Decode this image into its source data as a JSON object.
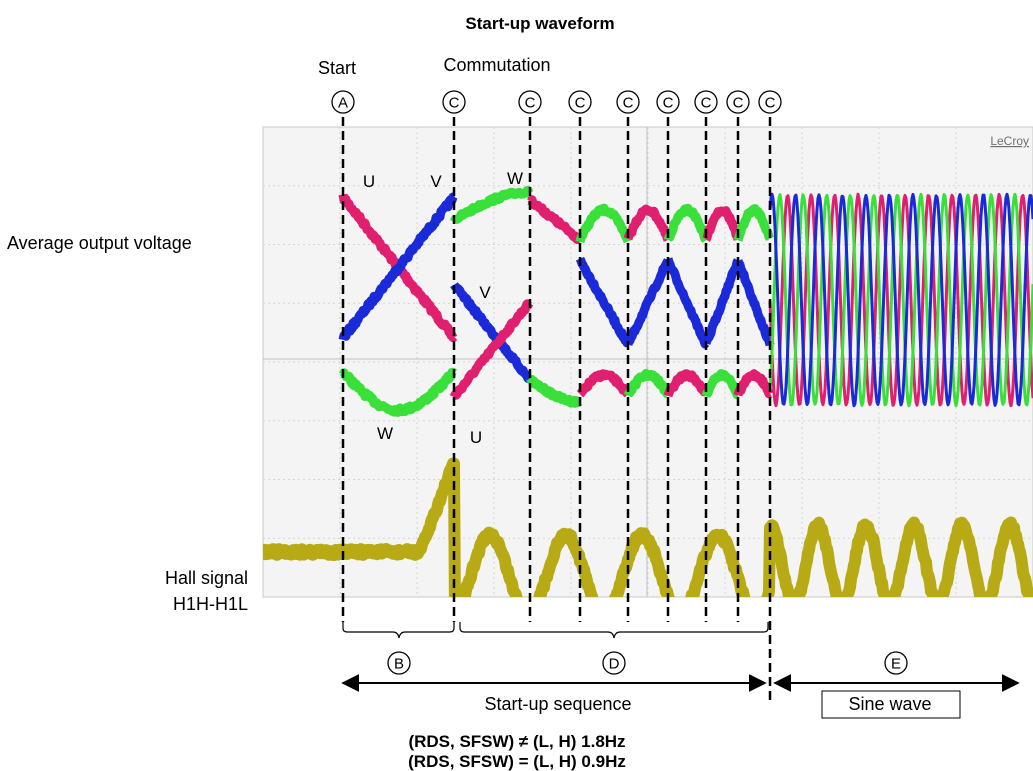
{
  "title": "Start-up waveform",
  "labels": {
    "start": "Start",
    "commutation": "Commutation",
    "average_output_voltage": "Average output voltage",
    "hall_signal_line1": "Hall signal",
    "hall_signal_line2": "H1H-H1L",
    "lecroy": "LeCroy",
    "startup_sequence": "Start-up sequence",
    "sine_wave": "Sine wave"
  },
  "markers": {
    "A": "A",
    "B": "B",
    "C": "C",
    "D": "D",
    "E": "E"
  },
  "phase_labels": {
    "u1": "U",
    "v1": "V",
    "w1": "W",
    "v2": "V",
    "w2": "W",
    "u2": "U"
  },
  "footer": {
    "line1": "(RDS, SFSW) ≠ (L, H) 1.8Hz",
    "line2": "(RDS, SFSW) = (L, H) 0.9Hz"
  },
  "colors": {
    "u_phase": "#e0206e",
    "v_phase": "#1a2ad8",
    "w_phase": "#3ae03a",
    "hall": "#b8aa14",
    "hall_reference": "#808080",
    "scope_background": "#f4f4f4",
    "grid": "#d4d4d4"
  }
}
